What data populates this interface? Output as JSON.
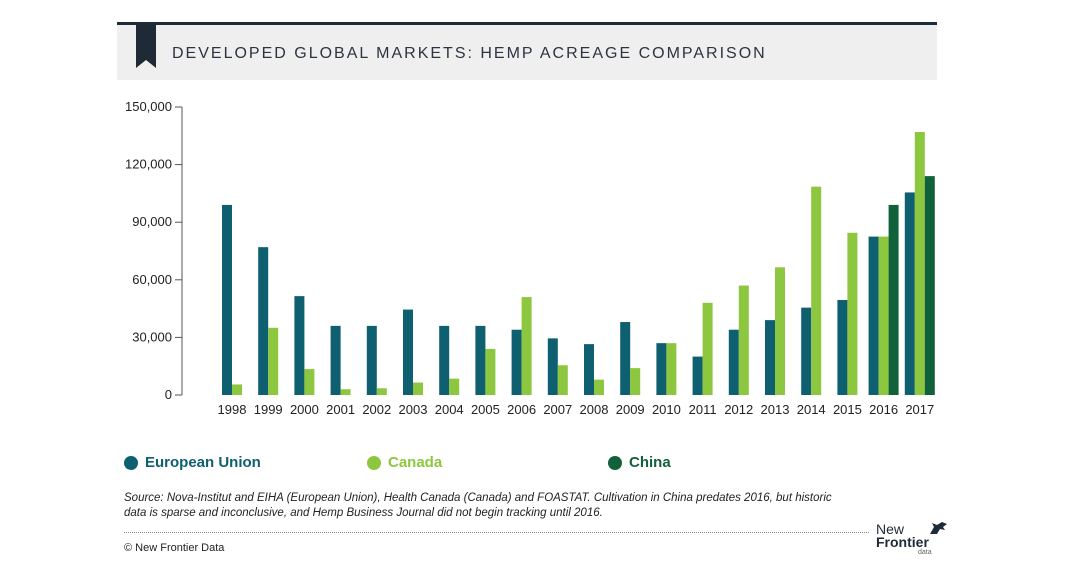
{
  "header": {
    "title": "DEVELOPED GLOBAL MARKETS: HEMP ACREAGE COMPARISON"
  },
  "chart_data": {
    "type": "bar",
    "categories": [
      "1998",
      "1999",
      "2000",
      "2001",
      "2002",
      "2003",
      "2004",
      "2005",
      "2006",
      "2007",
      "2008",
      "2009",
      "2010",
      "2011",
      "2012",
      "2013",
      "2014",
      "2015",
      "2016",
      "2017"
    ],
    "series": [
      {
        "name": "European Union",
        "color": "#0e5f6f",
        "values": [
          99000,
          77000,
          51500,
          36000,
          36000,
          44500,
          36000,
          36000,
          34000,
          29500,
          26500,
          38000,
          27000,
          20000,
          34000,
          39000,
          45500,
          49500,
          82500,
          105500
        ]
      },
      {
        "name": "Canada",
        "color": "#8dc63f",
        "values": [
          5500,
          35000,
          13500,
          3000,
          3500,
          6500,
          8500,
          24000,
          51000,
          15500,
          8000,
          14000,
          27000,
          48000,
          57000,
          66500,
          108500,
          84500,
          82500,
          137000
        ]
      },
      {
        "name": "China",
        "color": "#11613a",
        "values": [
          null,
          null,
          null,
          null,
          null,
          null,
          null,
          null,
          null,
          null,
          null,
          null,
          null,
          null,
          null,
          null,
          null,
          null,
          99000,
          114000
        ]
      }
    ],
    "yticks": [
      "0",
      "30,000",
      "60,000",
      "90,000",
      "120,000",
      "150,000"
    ],
    "ylim": [
      0,
      150000
    ],
    "legend_position": "bottom"
  },
  "footer": {
    "source": "Source: Nova-Institut and EIHA (European Union), Health Canada (Canada) and FOASTAT. Cultivation in China predates 2016, but historic data is sparse and inconclusive, and Hemp Business Journal did not begin tracking until 2016.",
    "copyright": "© New Frontier Data",
    "logo_line1": "New",
    "logo_line2": "Frontier",
    "logo_line3": "data"
  }
}
